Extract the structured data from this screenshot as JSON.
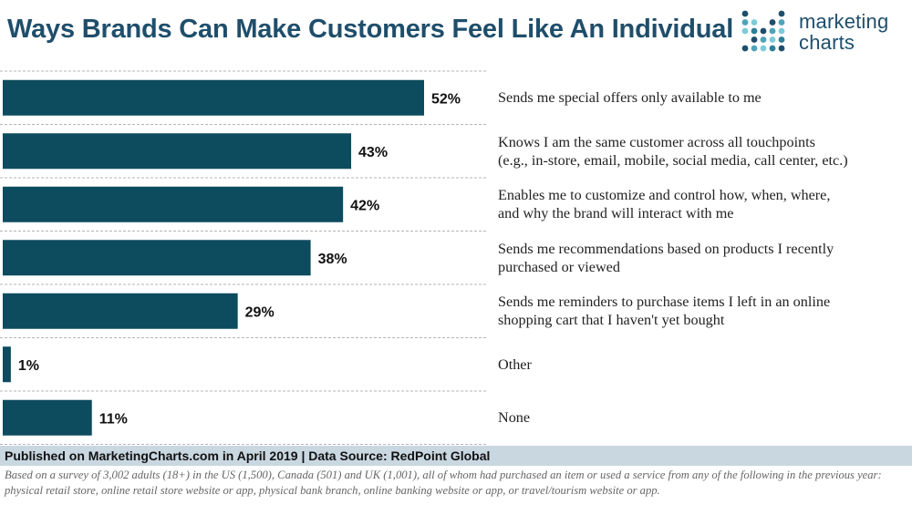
{
  "header": {
    "title": "Ways Brands Can Make Customers Feel Like An Individual"
  },
  "logo": {
    "line1": "marketing",
    "line2": "charts"
  },
  "chart_data": {
    "type": "bar",
    "orientation": "horizontal",
    "title": "Ways Brands Can Make Customers Feel Like An Individual",
    "categories": [
      [
        "Sends me special offers only available to me"
      ],
      [
        "Knows I am the same customer across all touchpoints",
        "(e.g., in-store, email, mobile, social media, call center, etc.)"
      ],
      [
        "Enables me to customize and control how, when, where,",
        "and why the brand will interact with me"
      ],
      [
        "Sends me recommendations based on products I recently",
        "purchased or viewed"
      ],
      [
        "Sends me reminders to purchase items I left in an online",
        "shopping cart that I haven't yet bought"
      ],
      [
        "Other"
      ],
      [
        "None"
      ]
    ],
    "values": [
      52,
      43,
      42,
      38,
      29,
      1,
      11
    ],
    "value_labels": [
      "52%",
      "43%",
      "42%",
      "38%",
      "29%",
      "1%",
      "11%"
    ],
    "unit": "%",
    "xlim": [
      0,
      60
    ],
    "bar_color": "#0d4b5e",
    "xlabel": "",
    "ylabel": ""
  },
  "footer": {
    "source": "Published on MarketingCharts.com in April 2019 | Data Source: RedPoint Global",
    "note": "Based on a survey of 3,002 adults (18+) in the US (1,500), Canada (501) and UK (1,001), all of whom had purchased an item or used a service from any of the following in the previous year: physical retail store, online retail store website or app, physical bank branch, online banking website or app, or travel/tourism website or app."
  },
  "colors": {
    "title": "#1f4e6b",
    "bar": "#0d4b5e",
    "source_bar": "#c9d7e1",
    "logo_dots": [
      "#1f4e6b",
      "#4fa3b8",
      "#7ecbd8",
      "#2c7f96"
    ]
  }
}
